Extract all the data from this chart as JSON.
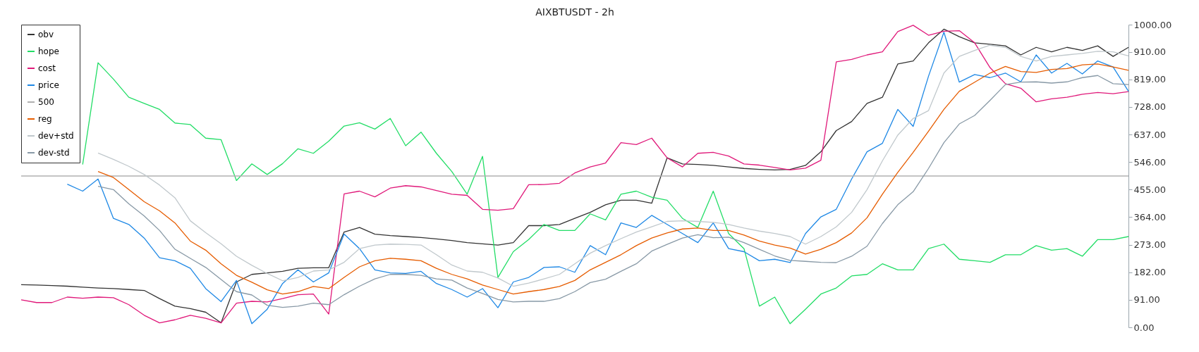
{
  "chart_data": {
    "type": "line",
    "title": "AIXBTUSDT - 2h",
    "legend": "top left",
    "marker": "none",
    "line_style": "solid",
    "categories": [
      null,
      null,
      null,
      null,
      null,
      null,
      null,
      null,
      null,
      null,
      null,
      null,
      null,
      null,
      null,
      null,
      null,
      null,
      null,
      null,
      null,
      null,
      null,
      null,
      null,
      null,
      null,
      null,
      null,
      null,
      null,
      null,
      null,
      null,
      null,
      null,
      null,
      null,
      null,
      null,
      null,
      null,
      null,
      null,
      null,
      null,
      null,
      null,
      null,
      null,
      null,
      null,
      null,
      null,
      null,
      null,
      null,
      null,
      null,
      null,
      null,
      null,
      null,
      null,
      null,
      null,
      null,
      null,
      null,
      null,
      null,
      null,
      null
    ],
    "ylim": [
      0,
      1000
    ],
    "yticks": [
      {
        "value": 0,
        "label": "0.00"
      },
      {
        "value": 91,
        "label": "91.00"
      },
      {
        "value": 182,
        "label": "182.00"
      },
      {
        "value": 273,
        "label": "273.00"
      },
      {
        "value": 364,
        "label": "364.00"
      },
      {
        "value": 455,
        "label": "455.00"
      },
      {
        "value": 546,
        "label": "546.00"
      },
      {
        "value": 637,
        "label": "637.00"
      },
      {
        "value": 728,
        "label": "728.00"
      },
      {
        "value": 819,
        "label": "819.00"
      },
      {
        "value": 910,
        "label": "910.00"
      },
      {
        "value": 1000,
        "label": "1000.00"
      }
    ],
    "series": [
      {
        "name": "obv",
        "color": "#333333",
        "values": [
          141,
          140,
          138,
          136,
          133,
          130,
          128,
          125,
          122,
          95,
          70,
          62,
          50,
          15,
          150,
          175,
          180,
          185,
          195,
          197,
          197,
          315,
          330,
          308,
          303,
          300,
          297,
          292,
          287,
          280,
          276,
          272,
          280,
          336,
          336,
          340,
          360,
          380,
          405,
          420,
          420,
          410,
          560,
          540,
          538,
          535,
          530,
          525,
          522,
          520,
          522,
          535,
          580,
          650,
          680,
          740,
          760,
          870,
          880,
          940,
          985,
          960,
          940,
          935,
          930,
          900,
          925,
          910,
          925,
          915,
          930,
          895,
          925
        ]
      },
      {
        "name": "hope",
        "color": "#22dd66",
        "values": [
          null,
          null,
          null,
          null,
          538,
          874,
          820,
          760,
          740,
          720,
          675,
          670,
          625,
          620,
          485,
          540,
          505,
          541,
          590,
          575,
          615,
          665,
          676,
          655,
          690,
          600,
          645,
          575,
          515,
          440,
          565,
          165,
          250,
          290,
          340,
          320,
          320,
          375,
          355,
          440,
          450,
          430,
          420,
          360,
          330,
          450,
          310,
          260,
          70,
          100,
          12,
          60,
          110,
          130,
          170,
          175,
          210,
          190,
          190,
          260,
          275,
          225,
          220,
          215,
          240,
          240,
          270,
          255,
          260,
          235,
          290,
          290,
          300
        ]
      },
      {
        "name": "cost",
        "color": "#e0197a",
        "values": [
          91,
          82,
          82,
          100,
          96,
          100,
          98,
          75,
          40,
          15,
          25,
          40,
          30,
          15,
          80,
          86,
          84,
          95,
          108,
          110,
          44,
          441,
          450,
          431,
          460,
          468,
          464,
          452,
          440,
          436,
          390,
          387,
          392,
          471,
          472,
          476,
          510,
          530,
          543,
          610,
          604,
          625,
          560,
          530,
          575,
          578,
          566,
          540,
          536,
          528,
          520,
          526,
          552,
          877,
          885,
          900,
          910,
          977,
          998,
          965,
          978,
          980,
          940,
          858,
          805,
          790,
          745,
          755,
          760,
          770,
          776,
          772,
          779
        ]
      },
      {
        "name": "price",
        "color": "#1e88e5",
        "values": [
          null,
          null,
          null,
          473,
          450,
          490,
          360,
          340,
          295,
          230,
          220,
          195,
          128,
          85,
          155,
          12,
          60,
          145,
          190,
          150,
          180,
          308,
          260,
          190,
          180,
          178,
          185,
          145,
          125,
          100,
          128,
          65,
          150,
          165,
          198,
          200,
          182,
          270,
          240,
          345,
          330,
          370,
          340,
          310,
          280,
          345,
          260,
          250,
          220,
          225,
          214,
          310,
          365,
          390,
          490,
          580,
          608,
          720,
          664,
          830,
          975,
          810,
          835,
          825,
          840,
          811,
          900,
          840,
          872,
          837,
          880,
          860,
          780
        ]
      },
      {
        "name": "500",
        "color": "#b0b0b0",
        "values": [
          500,
          500,
          500,
          500,
          500,
          500,
          500,
          500,
          500,
          500,
          500,
          500,
          500,
          500,
          500,
          500,
          500,
          500,
          500,
          500,
          500,
          500,
          500,
          500,
          500,
          500,
          500,
          500,
          500,
          500,
          500,
          500,
          500,
          500,
          500,
          500,
          500,
          500,
          500,
          500,
          500,
          500,
          500,
          500,
          500,
          500,
          500,
          500,
          500,
          500,
          500,
          500,
          500,
          500,
          500,
          500,
          500,
          500,
          500,
          500,
          500,
          500,
          500,
          500,
          500,
          500,
          500,
          500,
          500,
          500,
          500,
          500,
          500
        ]
      },
      {
        "name": "reg",
        "color": "#e65c00",
        "values": [
          null,
          null,
          null,
          null,
          null,
          515,
          495,
          455,
          415,
          385,
          345,
          285,
          255,
          210,
          172,
          149,
          124,
          110,
          118,
          135,
          128,
          165,
          200,
          220,
          228,
          225,
          220,
          195,
          175,
          160,
          140,
          125,
          110,
          118,
          125,
          135,
          155,
          190,
          215,
          240,
          270,
          295,
          312,
          325,
          328,
          320,
          320,
          305,
          285,
          272,
          262,
          242,
          258,
          280,
          312,
          362,
          440,
          512,
          578,
          648,
          720,
          780,
          810,
          840,
          862,
          845,
          842,
          852,
          855,
          867,
          870,
          860,
          849
        ]
      },
      {
        "name": "dev+std",
        "color": "#c0c8cc",
        "values": [
          null,
          null,
          null,
          null,
          null,
          576,
          555,
          532,
          505,
          470,
          428,
          352,
          313,
          276,
          235,
          205,
          178,
          154,
          165,
          186,
          190,
          215,
          260,
          272,
          275,
          274,
          272,
          240,
          206,
          186,
          182,
          163,
          136,
          146,
          160,
          175,
          210,
          245,
          270,
          293,
          315,
          332,
          350,
          352,
          350,
          347,
          340,
          328,
          318,
          310,
          300,
          275,
          300,
          332,
          380,
          455,
          550,
          635,
          690,
          716,
          840,
          895,
          915,
          932,
          925,
          895,
          880,
          895,
          900,
          905,
          912,
          910,
          897
        ]
      },
      {
        "name": "dev-std",
        "color": "#8899a6",
        "values": [
          null,
          null,
          null,
          null,
          null,
          466,
          455,
          408,
          368,
          320,
          258,
          228,
          198,
          158,
          118,
          107,
          73,
          66,
          70,
          80,
          75,
          108,
          136,
          160,
          175,
          175,
          172,
          160,
          156,
          130,
          112,
          92,
          84,
          86,
          86,
          95,
          118,
          148,
          159,
          185,
          210,
          252,
          274,
          295,
          306,
          296,
          298,
          280,
          258,
          236,
          221,
          218,
          215,
          214,
          235,
          268,
          343,
          405,
          448,
          525,
          610,
          672,
          700,
          750,
          802,
          810,
          811,
          807,
          811,
          825,
          832,
          805,
          802
        ]
      }
    ]
  }
}
